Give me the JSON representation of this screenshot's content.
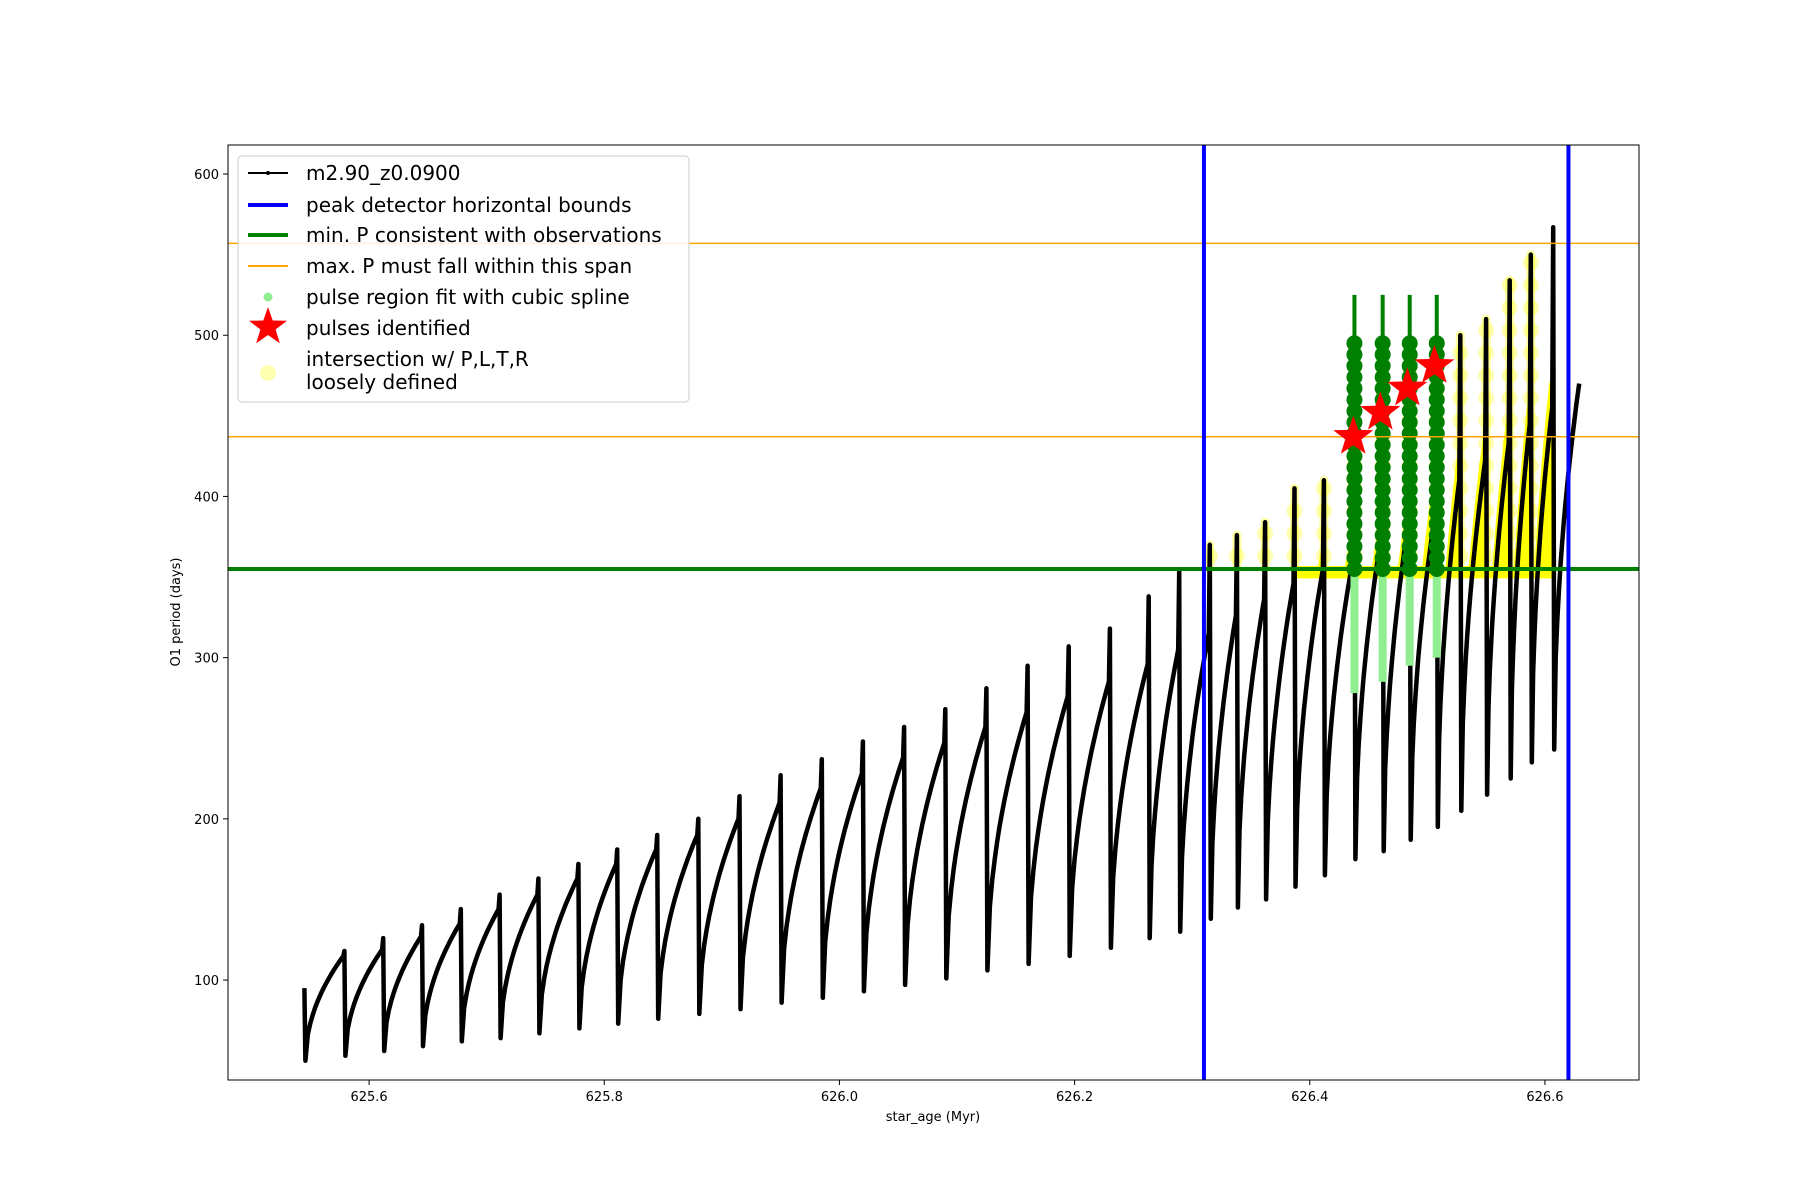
{
  "chart_data": {
    "type": "line",
    "title": "",
    "xlabel": "star_age (Myr)",
    "ylabel": "O1 period (days)",
    "xlim": [
      625.48,
      626.68
    ],
    "ylim": [
      38,
      618
    ],
    "x_ticks": [
      625.6,
      625.8,
      626.0,
      626.2,
      626.4,
      626.6
    ],
    "x_tick_labels": [
      "625.6",
      "625.8",
      "626.0",
      "626.2",
      "626.4",
      "626.6"
    ],
    "y_ticks": [
      100,
      200,
      300,
      400,
      500,
      600
    ],
    "y_tick_labels": [
      "100",
      "200",
      "300",
      "400",
      "500",
      "600"
    ],
    "grid": false,
    "legend_position": "upper-left",
    "colors": {
      "model": "#000000",
      "bounds": "#0000ff",
      "min_p": "#008000",
      "max_p": "#ffa500",
      "pulse_fit": "#90ee90",
      "pulse_fit_dark": "#008000",
      "star": "#ff0000",
      "intersection": "#ffff00"
    },
    "series": [
      {
        "name": "m2.90_z0.0900",
        "kind": "line-markers",
        "pulses": [
          {
            "t": 625.545,
            "start": 50,
            "peak": 115,
            "spike": 95
          },
          {
            "t": 625.579,
            "start": 53,
            "peak": 119,
            "spike": 118
          },
          {
            "t": 625.612,
            "start": 56,
            "peak": 127,
            "spike": 126
          },
          {
            "t": 625.645,
            "start": 59,
            "peak": 135,
            "spike": 134
          },
          {
            "t": 625.678,
            "start": 62,
            "peak": 144,
            "spike": 144
          },
          {
            "t": 625.711,
            "start": 64,
            "peak": 153,
            "spike": 153
          },
          {
            "t": 625.744,
            "start": 67,
            "peak": 163,
            "spike": 163
          },
          {
            "t": 625.778,
            "start": 70,
            "peak": 172,
            "spike": 172
          },
          {
            "t": 625.811,
            "start": 73,
            "peak": 181,
            "spike": 181
          },
          {
            "t": 625.845,
            "start": 76,
            "peak": 190,
            "spike": 190
          },
          {
            "t": 625.88,
            "start": 79,
            "peak": 200,
            "spike": 200
          },
          {
            "t": 625.915,
            "start": 82,
            "peak": 210,
            "spike": 214
          },
          {
            "t": 625.95,
            "start": 86,
            "peak": 219,
            "spike": 227
          },
          {
            "t": 625.985,
            "start": 89,
            "peak": 228,
            "spike": 237
          },
          {
            "t": 626.02,
            "start": 93,
            "peak": 238,
            "spike": 248
          },
          {
            "t": 626.055,
            "start": 97,
            "peak": 247,
            "spike": 257
          },
          {
            "t": 626.09,
            "start": 101,
            "peak": 257,
            "spike": 268
          },
          {
            "t": 626.125,
            "start": 106,
            "peak": 266,
            "spike": 281
          },
          {
            "t": 626.16,
            "start": 110,
            "peak": 276,
            "spike": 295
          },
          {
            "t": 626.195,
            "start": 115,
            "peak": 285,
            "spike": 307
          },
          {
            "t": 626.23,
            "start": 120,
            "peak": 296,
            "spike": 318
          },
          {
            "t": 626.263,
            "start": 126,
            "peak": 305,
            "spike": 338
          },
          {
            "t": 626.289,
            "start": 130,
            "peak": 315,
            "spike": 354
          },
          {
            "t": 626.315,
            "start": 138,
            "peak": 326,
            "spike": 370
          },
          {
            "t": 626.338,
            "start": 145,
            "peak": 336,
            "spike": 376
          },
          {
            "t": 626.362,
            "start": 150,
            "peak": 346,
            "spike": 384
          },
          {
            "t": 626.387,
            "start": 158,
            "peak": 355,
            "spike": 405
          },
          {
            "t": 626.412,
            "start": 165,
            "peak": 363,
            "spike": 410
          },
          {
            "t": 626.438,
            "start": 175,
            "peak": 377,
            "spike": 432
          },
          {
            "t": 626.462,
            "start": 180,
            "peak": 385,
            "spike": 447
          },
          {
            "t": 626.485,
            "start": 187,
            "peak": 392,
            "spike": 461
          },
          {
            "t": 626.508,
            "start": 195,
            "peak": 410,
            "spike": 473
          },
          {
            "t": 626.528,
            "start": 205,
            "peak": 422,
            "spike": 500
          },
          {
            "t": 626.55,
            "start": 215,
            "peak": 433,
            "spike": 510
          },
          {
            "t": 626.57,
            "start": 225,
            "peak": 445,
            "spike": 534
          },
          {
            "t": 626.588,
            "start": 235,
            "peak": 455,
            "spike": 550
          },
          {
            "t": 626.607,
            "start": 243,
            "peak": 470,
            "spike": 567
          }
        ]
      },
      {
        "name": "peak detector horizontal bounds",
        "kind": "vline",
        "values": [
          626.31,
          626.62
        ]
      },
      {
        "name": "min. P consistent with observations",
        "kind": "hline",
        "values": [
          355
        ]
      },
      {
        "name": "max. P must fall within this span",
        "kind": "hline",
        "values": [
          437,
          557
        ]
      },
      {
        "name": "pulse region fit with cubic spline",
        "kind": "scatter",
        "segments": [
          {
            "x": 626.438,
            "y_low": 278,
            "y_high": 525,
            "dark_low": 355,
            "dark_high": 495
          },
          {
            "x": 626.462,
            "y_low": 285,
            "y_high": 525,
            "dark_low": 355,
            "dark_high": 495
          },
          {
            "x": 626.485,
            "y_low": 295,
            "y_high": 525,
            "dark_low": 355,
            "dark_high": 495
          },
          {
            "x": 626.508,
            "y_low": 300,
            "y_high": 525,
            "dark_low": 355,
            "dark_high": 495
          }
        ]
      },
      {
        "name": "pulses identified",
        "kind": "markers",
        "points": [
          {
            "x": 626.437,
            "y": 437
          },
          {
            "x": 626.46,
            "y": 452
          },
          {
            "x": 626.483,
            "y": 467
          },
          {
            "x": 626.506,
            "y": 481
          }
        ]
      },
      {
        "name": "intersection w/ P,L,T,R\nloosely defined",
        "kind": "scatter"
      }
    ]
  },
  "legend": {
    "entries": [
      "m2.90_z0.0900",
      "peak detector horizontal bounds",
      "min. P consistent with observations",
      "max. P must fall within this span",
      "pulse region fit with cubic spline",
      "pulses identified",
      "intersection w/ P,L,T,R",
      "loosely defined"
    ]
  }
}
